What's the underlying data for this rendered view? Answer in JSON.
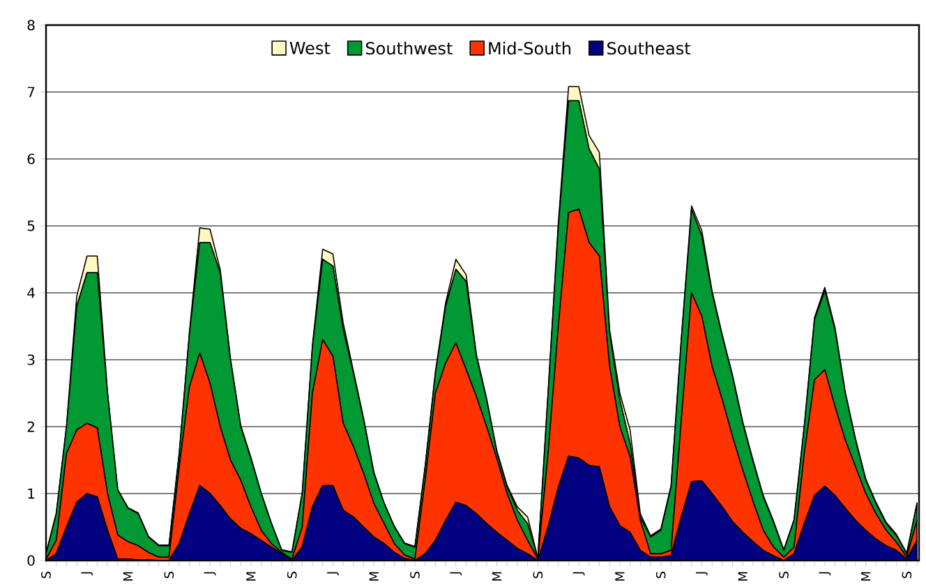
{
  "chart_data": {
    "type": "area",
    "stacked": true,
    "categories": [
      "S",
      null,
      null,
      null,
      "J",
      null,
      null,
      null,
      "M",
      null,
      null,
      null,
      "S",
      null,
      null,
      null,
      "J",
      null,
      null,
      null,
      "M",
      null,
      null,
      null,
      "S",
      null,
      null,
      null,
      "J",
      null,
      null,
      null,
      "M",
      null,
      null,
      null,
      "S",
      null,
      null,
      null,
      "J",
      null,
      null,
      null,
      "M",
      null,
      null,
      null,
      "S",
      null,
      null,
      null,
      "J",
      null,
      null,
      null,
      "M",
      null,
      null,
      null,
      "S",
      null,
      null,
      null,
      "J",
      null,
      null,
      null,
      "M",
      null,
      null,
      null,
      "S",
      null,
      null,
      null,
      "J",
      null,
      null,
      null,
      "M",
      null,
      null,
      null,
      "S",
      null
    ],
    "ylim": [
      0,
      8
    ],
    "yticks": [
      0,
      1,
      2,
      3,
      4,
      5,
      6,
      7,
      8
    ],
    "grid": "y",
    "legend": "top",
    "series": [
      {
        "name": "Southeast",
        "color": "#000080",
        "values": [
          0,
          0.1,
          0.5,
          0.87,
          1.0,
          0.95,
          0.45,
          0.02,
          0.02,
          0.01,
          0.01,
          0,
          0,
          0.25,
          0.7,
          1.12,
          1.0,
          0.82,
          0.62,
          0.48,
          0.4,
          0.3,
          0.2,
          0.1,
          0,
          0.2,
          0.8,
          1.12,
          1.12,
          0.75,
          0.65,
          0.5,
          0.35,
          0.25,
          0.12,
          0.03,
          0,
          0.1,
          0.3,
          0.6,
          0.87,
          0.82,
          0.7,
          0.55,
          0.42,
          0.3,
          0.18,
          0.1,
          0,
          0.5,
          1.1,
          1.56,
          1.53,
          1.42,
          1.4,
          0.8,
          0.52,
          0.42,
          0.15,
          0.05,
          0.05,
          0.07,
          0.65,
          1.18,
          1.19,
          1.0,
          0.8,
          0.58,
          0.42,
          0.28,
          0.15,
          0.07,
          0,
          0.1,
          0.55,
          0.97,
          1.11,
          0.97,
          0.78,
          0.6,
          0.45,
          0.32,
          0.22,
          0.15,
          0.02,
          0.3
        ]
      },
      {
        "name": "Mid-South",
        "color": "#ff3300",
        "values": [
          0.02,
          0.2,
          1.1,
          1.08,
          1.05,
          1.03,
          0.55,
          0.36,
          0.26,
          0.21,
          0.11,
          0.05,
          0.05,
          1.15,
          1.9,
          1.98,
          1.65,
          1.18,
          0.88,
          0.72,
          0.4,
          0.15,
          0.05,
          0.02,
          0.02,
          0.3,
          1.7,
          2.18,
          1.93,
          1.3,
          1.05,
          0.8,
          0.5,
          0.3,
          0.13,
          0.05,
          0.02,
          1.1,
          2.2,
          2.35,
          2.38,
          2.03,
          1.75,
          1.45,
          1.1,
          0.7,
          0.42,
          0.2,
          0.02,
          1.1,
          2.4,
          3.64,
          3.72,
          3.33,
          3.15,
          2.1,
          1.48,
          1.13,
          0.45,
          0.05,
          0.05,
          0.08,
          1.45,
          2.82,
          2.46,
          1.9,
          1.6,
          1.27,
          0.93,
          0.6,
          0.3,
          0.13,
          0.05,
          0.1,
          1.05,
          1.73,
          1.74,
          1.33,
          1.02,
          0.8,
          0.55,
          0.38,
          0.23,
          0.12,
          0.03,
          0.3
        ]
      },
      {
        "name": "Southwest",
        "color": "#009933",
        "values": [
          0.08,
          0.4,
          0.4,
          1.85,
          2.25,
          2.32,
          1.5,
          0.67,
          0.5,
          0.48,
          0.23,
          0.17,
          0.17,
          0.2,
          0.8,
          1.65,
          2.1,
          2.3,
          1.5,
          0.8,
          0.72,
          0.55,
          0.3,
          0.03,
          0.1,
          0.5,
          0.7,
          1.2,
          1.35,
          1.4,
          1.1,
          0.8,
          0.45,
          0.3,
          0.25,
          0.17,
          0.18,
          0.2,
          0.3,
          0.85,
          1.1,
          1.32,
          0.6,
          0.4,
          0.1,
          0.1,
          0.15,
          0.25,
          0.01,
          0.9,
          1.5,
          1.67,
          1.62,
          1.4,
          1.3,
          0.5,
          0.4,
          0.2,
          0.05,
          0.25,
          0.35,
          0.95,
          1.2,
          1.25,
          1.2,
          1.1,
          0.95,
          0.9,
          0.7,
          0.6,
          0.5,
          0.37,
          0.1,
          0.4,
          0.4,
          0.9,
          1.18,
          1.15,
          0.7,
          0.4,
          0.2,
          0.15,
          0.1,
          0.1,
          0.05,
          0.25
        ]
      },
      {
        "name": "West",
        "color": "#fff8c0",
        "values": [
          0.01,
          0.01,
          0.01,
          0.15,
          0.25,
          0.25,
          0.02,
          0.01,
          0.01,
          0.01,
          0.01,
          0.01,
          0.01,
          0.01,
          0.02,
          0.22,
          0.2,
          0.05,
          0.02,
          0.02,
          0.02,
          0.01,
          0.01,
          0.01,
          0.01,
          0.01,
          0.02,
          0.15,
          0.18,
          0.1,
          0.03,
          0.02,
          0.02,
          0.01,
          0.01,
          0.01,
          0.01,
          0.01,
          0.02,
          0.05,
          0.15,
          0.1,
          0.03,
          0.02,
          0.02,
          0.02,
          0.05,
          0.1,
          0.01,
          0.02,
          0.05,
          0.21,
          0.21,
          0.2,
          0.25,
          0.05,
          0.1,
          0.2,
          0.05,
          0.02,
          0.02,
          0.02,
          0.02,
          0.05,
          0.08,
          0.03,
          0.02,
          0.02,
          0.02,
          0.02,
          0.02,
          0.02,
          0.01,
          0.01,
          0.02,
          0.03,
          0.05,
          0.03,
          0.02,
          0.02,
          0.02,
          0.02,
          0.02,
          0.02,
          0.01,
          0.01
        ]
      }
    ]
  }
}
